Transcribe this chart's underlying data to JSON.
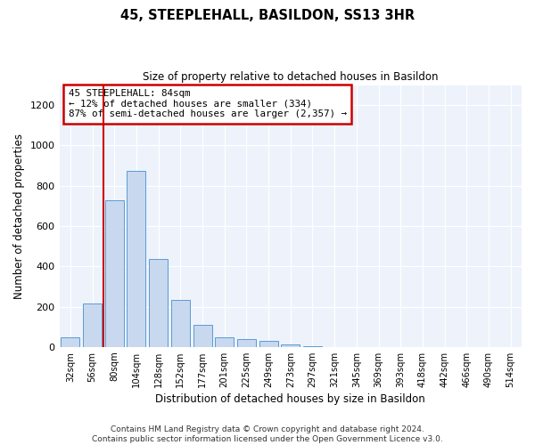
{
  "title": "45, STEEPLEHALL, BASILDON, SS13 3HR",
  "subtitle": "Size of property relative to detached houses in Basildon",
  "xlabel": "Distribution of detached houses by size in Basildon",
  "ylabel": "Number of detached properties",
  "bar_color": "#c8d8ef",
  "bar_edge_color": "#5b9bd5",
  "categories": [
    "32sqm",
    "56sqm",
    "80sqm",
    "104sqm",
    "128sqm",
    "152sqm",
    "177sqm",
    "201sqm",
    "225sqm",
    "249sqm",
    "273sqm",
    "297sqm",
    "321sqm",
    "345sqm",
    "369sqm",
    "393sqm",
    "418sqm",
    "442sqm",
    "466sqm",
    "490sqm",
    "514sqm"
  ],
  "values": [
    50,
    215,
    728,
    875,
    438,
    233,
    108,
    47,
    38,
    28,
    13,
    5,
    0,
    0,
    0,
    0,
    0,
    0,
    0,
    0,
    0
  ],
  "ylim": [
    0,
    1300
  ],
  "yticks": [
    0,
    200,
    400,
    600,
    800,
    1000,
    1200
  ],
  "annotation_text": "45 STEEPLEHALL: 84sqm\n← 12% of detached houses are smaller (334)\n87% of semi-detached houses are larger (2,357) →",
  "annotation_box_color": "#ffffff",
  "annotation_box_edge": "#cc0000",
  "vline_bar_index": 2,
  "footer_line1": "Contains HM Land Registry data © Crown copyright and database right 2024.",
  "footer_line2": "Contains public sector information licensed under the Open Government Licence v3.0.",
  "bg_color": "#edf2fb"
}
